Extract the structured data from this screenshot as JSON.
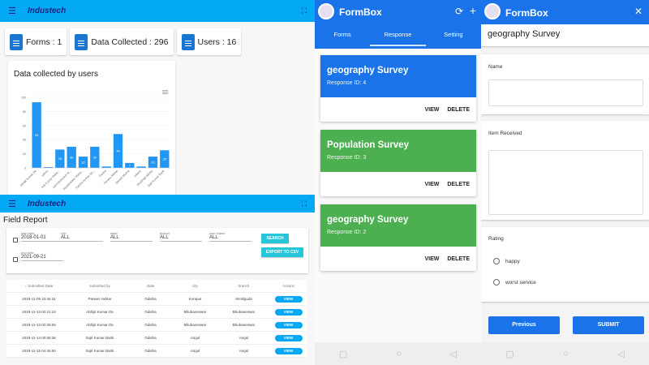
{
  "dashboard": {
    "app_title": "Industech",
    "stats": [
      {
        "label": "Forms : 1",
        "icon": "document-icon"
      },
      {
        "label": "Data Collected : 296",
        "icon": "clipboard-icon"
      },
      {
        "label": "Users : 16",
        "icon": "clipboard-icon"
      }
    ],
    "chart_title": "Data collected by users"
  },
  "chart_data": {
    "type": "bar",
    "title": "Data collected by users",
    "categories": [
      "Abhijit Kumar De",
      "admin",
      "Anil Kumar Moha...",
      "DIPTIRANJAN M...",
      "Jayashankar Moha...",
      "Pabitra Kumar Sa...",
      "Partha",
      "Parwez Akhtar",
      "Sambit Mishra",
      "srikant",
      "Shubhajit Akhtar",
      "Sujit Kumar Barik"
    ],
    "values": [
      93,
      1,
      26,
      30,
      16,
      30,
      2,
      48,
      7,
      2,
      16,
      25
    ],
    "ylim": [
      0,
      100
    ],
    "yticks": [
      0,
      20,
      40,
      60,
      80,
      100
    ],
    "xlabel": "",
    "ylabel": "",
    "grid": true,
    "legend": "none",
    "color": "#2196f3"
  },
  "field_report": {
    "app_title": "Industech",
    "title": "Field Report",
    "filters": {
      "start_date": {
        "label": "start date",
        "value": "2018-01-01"
      },
      "end_date": {
        "label": "end date",
        "value": "2021-09-21"
      },
      "city": {
        "label": "city",
        "value": "ALL"
      },
      "state": {
        "label": "state",
        "value": "ALL"
      },
      "branch": {
        "label": "branch",
        "value": "ALL"
      },
      "user_name": {
        "label": "user Name",
        "value": "ALL"
      }
    },
    "search_label": "SEARCH",
    "export_label": "EXPORT TO CSV",
    "columns": [
      "↑ Submitted Date",
      "submitted by",
      "state",
      "city",
      "branch",
      "Actions"
    ],
    "rows": [
      [
        "2019-11-09 23:45:31",
        "Parwez Akhtar",
        "Odisha",
        "Koraput",
        "Similiguda"
      ],
      [
        "2019-11-13 02:21:23",
        "Abhijit Kumar De",
        "Odisha",
        "Bhubaneswar",
        "Bhubaneswar"
      ],
      [
        "2019-11-13 02:25:05",
        "Abhijit Kumar De",
        "Odisha",
        "Bhubaneswar",
        "Bhubaneswar"
      ],
      [
        "2019-11-14 00:55:38",
        "Sujit Kumar Barik",
        "Odisha",
        "Angul",
        "Angul"
      ],
      [
        "2019-11-15 04:45:00",
        "Sujit Kumar Barik",
        "Odisha",
        "Angul",
        "Angul"
      ]
    ],
    "view_label": "VIEW"
  },
  "responses": {
    "app_title": "FormBox",
    "tabs": [
      "Forms",
      "Response",
      "Setting"
    ],
    "active_tab": "Response",
    "cards": [
      {
        "title": "geography Survey",
        "subtitle": "Response ID: 4",
        "color": "#1a73e8"
      },
      {
        "title": "Population Survey",
        "subtitle": "Response ID: 3",
        "color": "#4caf50"
      },
      {
        "title": "geography Survey",
        "subtitle": "Response ID: 2",
        "color": "#4caf50"
      }
    ],
    "view_label": "VIEW",
    "delete_label": "DELETE"
  },
  "form": {
    "app_title": "FormBox",
    "survey_title": "geography Survey",
    "q_name": "Name",
    "q_item": "Item Received",
    "q_rating": "Rating",
    "options": [
      "happy",
      "worst service"
    ],
    "previous_label": "Previous",
    "submit_label": "SUBMIT"
  },
  "nav": {
    "square": "▢",
    "circle": "○",
    "back": "◁"
  }
}
